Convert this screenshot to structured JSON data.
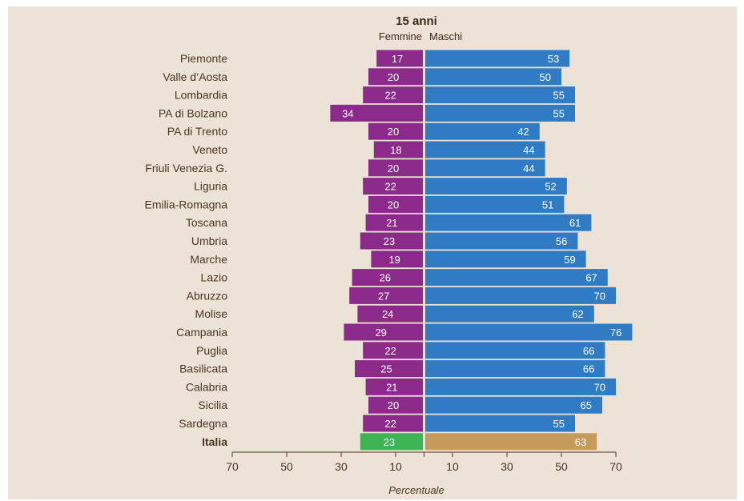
{
  "chart_data": {
    "type": "bar",
    "title": "15 anni",
    "series_labels": {
      "left": "Femmine",
      "right": "Maschi"
    },
    "categories": [
      "Piemonte",
      "Valle d’Aosta",
      "Lombardia",
      "PA di Bolzano",
      "PA di Trento",
      "Veneto",
      "Friuli Venezia G.",
      "Liguria",
      "Emilia-Romagna",
      "Toscana",
      "Umbria",
      "Marche",
      "Lazio",
      "Abruzzo",
      "Molise",
      "Campania",
      "Puglia",
      "Basilicata",
      "Calabria",
      "Sicilia",
      "Sardegna",
      "Italia"
    ],
    "series": [
      {
        "name": "Femmine",
        "values": [
          17,
          20,
          22,
          34,
          20,
          18,
          20,
          22,
          20,
          21,
          23,
          19,
          26,
          27,
          24,
          29,
          22,
          25,
          21,
          20,
          22,
          23
        ]
      },
      {
        "name": "Maschi",
        "values": [
          53,
          50,
          55,
          55,
          42,
          44,
          44,
          52,
          51,
          61,
          56,
          59,
          67,
          70,
          62,
          76,
          66,
          66,
          70,
          65,
          55,
          63
        ]
      }
    ],
    "xlabel": "Percentuale",
    "ticks_left": [
      "70",
      "50",
      "30",
      "10"
    ],
    "ticks_right": [
      "10",
      "30",
      "50",
      "70"
    ],
    "colors": {
      "femmine": "#8b2a8a",
      "maschi": "#2f7bc4",
      "italia_femmine": "#3db356",
      "italia_maschi": "#c59a5a",
      "axis": "#6b5440"
    }
  }
}
